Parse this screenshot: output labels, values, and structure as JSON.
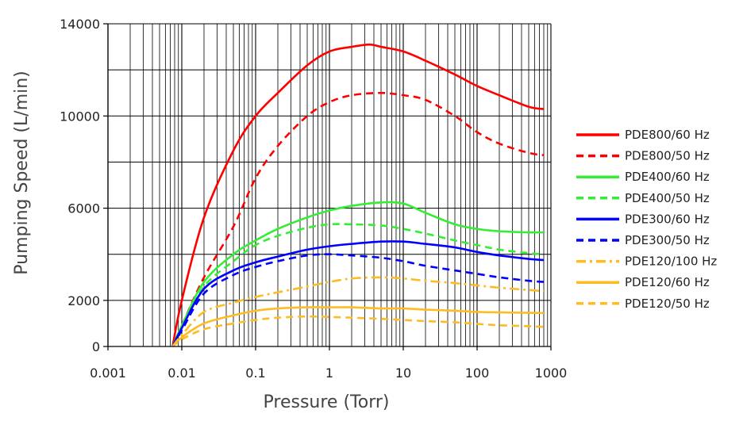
{
  "chart_data": {
    "type": "line",
    "title": "",
    "xlabel": "Pressure (Torr)",
    "ylabel": "Pumping Speed (L/min)",
    "x_scale": "log",
    "xlim": [
      0.001,
      1000
    ],
    "ylim": [
      0,
      14000
    ],
    "grid": true,
    "legend_position": "right",
    "x_ticks": [
      "0.001",
      "0.01",
      "0.1",
      "1",
      "10",
      "100",
      "1000"
    ],
    "x_tick_values": [
      0.001,
      0.01,
      0.1,
      1,
      10,
      100,
      1000
    ],
    "y_ticks": [
      "0",
      "2000",
      "6000",
      "10000",
      "14000"
    ],
    "y_tick_values": [
      0,
      2000,
      6000,
      10000,
      14000
    ],
    "y_gridlines": [
      0,
      2000,
      4000,
      6000,
      8000,
      10000,
      12000,
      14000
    ],
    "series": [
      {
        "name": "PDE800/60 Hz",
        "color": "#ff0000",
        "style": "solid",
        "x": [
          0.0075,
          0.01,
          0.02,
          0.05,
          0.1,
          0.2,
          0.5,
          1,
          2,
          3.5,
          5,
          10,
          20,
          50,
          100,
          200,
          500,
          800
        ],
        "y": [
          0,
          2000,
          5600,
          8500,
          10000,
          11000,
          12200,
          12800,
          13000,
          13100,
          13000,
          12800,
          12400,
          11800,
          11300,
          10900,
          10400,
          10300
        ]
      },
      {
        "name": "PDE800/50 Hz",
        "color": "#ff0000",
        "style": "dashed",
        "x": [
          0.0075,
          0.01,
          0.02,
          0.05,
          0.1,
          0.2,
          0.5,
          1,
          2,
          5,
          10,
          20,
          50,
          100,
          200,
          500,
          800
        ],
        "y": [
          0,
          900,
          3000,
          5200,
          7300,
          8700,
          10000,
          10600,
          10900,
          11000,
          10900,
          10700,
          10000,
          9300,
          8800,
          8400,
          8300
        ]
      },
      {
        "name": "PDE400/60 Hz",
        "color": "#33ee33",
        "style": "solid",
        "x": [
          0.0075,
          0.01,
          0.02,
          0.05,
          0.1,
          0.2,
          0.5,
          1,
          2,
          5,
          10,
          20,
          50,
          100,
          200,
          500,
          800
        ],
        "y": [
          0,
          900,
          2800,
          4000,
          4600,
          5100,
          5600,
          5900,
          6100,
          6250,
          6200,
          5800,
          5300,
          5100,
          5000,
          4950,
          4950
        ]
      },
      {
        "name": "PDE400/50 Hz",
        "color": "#33ee33",
        "style": "dashed",
        "x": [
          0.0075,
          0.01,
          0.02,
          0.05,
          0.1,
          0.2,
          0.5,
          1,
          2,
          5,
          10,
          20,
          50,
          100,
          200,
          500,
          800
        ],
        "y": [
          0,
          800,
          2600,
          3700,
          4400,
          4800,
          5150,
          5300,
          5300,
          5250,
          5100,
          4900,
          4600,
          4400,
          4200,
          4050,
          4000
        ]
      },
      {
        "name": "PDE300/60 Hz",
        "color": "#0000ff",
        "style": "solid",
        "x": [
          0.0075,
          0.01,
          0.02,
          0.05,
          0.1,
          0.2,
          0.5,
          1,
          2,
          5,
          10,
          20,
          50,
          100,
          200,
          500,
          800
        ],
        "y": [
          0,
          800,
          2500,
          3300,
          3650,
          3900,
          4200,
          4350,
          4450,
          4550,
          4550,
          4450,
          4300,
          4100,
          3950,
          3800,
          3750
        ]
      },
      {
        "name": "PDE300/50 Hz",
        "color": "#0000ff",
        "style": "dashed",
        "x": [
          0.0075,
          0.01,
          0.02,
          0.05,
          0.1,
          0.2,
          0.5,
          1,
          2,
          5,
          10,
          20,
          50,
          100,
          200,
          500,
          800
        ],
        "y": [
          0,
          700,
          2300,
          3100,
          3450,
          3700,
          3950,
          4000,
          3950,
          3850,
          3700,
          3500,
          3300,
          3150,
          3000,
          2850,
          2800
        ]
      },
      {
        "name": "PDE120/100 Hz",
        "color": "#ffbb22",
        "style": "dashdot",
        "x": [
          0.0075,
          0.01,
          0.02,
          0.05,
          0.1,
          0.2,
          0.5,
          1,
          2,
          5,
          10,
          20,
          50,
          100,
          200,
          500,
          800
        ],
        "y": [
          0,
          500,
          1500,
          1900,
          2150,
          2350,
          2600,
          2800,
          2950,
          3000,
          2950,
          2850,
          2750,
          2650,
          2550,
          2450,
          2400
        ]
      },
      {
        "name": "PDE120/60 Hz",
        "color": "#ffbb22",
        "style": "solid",
        "x": [
          0.0075,
          0.01,
          0.02,
          0.05,
          0.1,
          0.2,
          0.5,
          1,
          2,
          5,
          10,
          20,
          50,
          100,
          200,
          500,
          800
        ],
        "y": [
          0,
          400,
          1000,
          1350,
          1550,
          1650,
          1700,
          1700,
          1700,
          1650,
          1650,
          1600,
          1550,
          1500,
          1480,
          1460,
          1450
        ]
      },
      {
        "name": "PDE120/50 Hz",
        "color": "#ffbb22",
        "style": "dashed",
        "x": [
          0.0075,
          0.01,
          0.02,
          0.05,
          0.1,
          0.2,
          0.5,
          1,
          2,
          5,
          10,
          20,
          50,
          100,
          200,
          500,
          800
        ],
        "y": [
          0,
          300,
          750,
          1000,
          1150,
          1250,
          1300,
          1280,
          1250,
          1200,
          1150,
          1100,
          1050,
          980,
          920,
          880,
          850
        ]
      }
    ]
  }
}
